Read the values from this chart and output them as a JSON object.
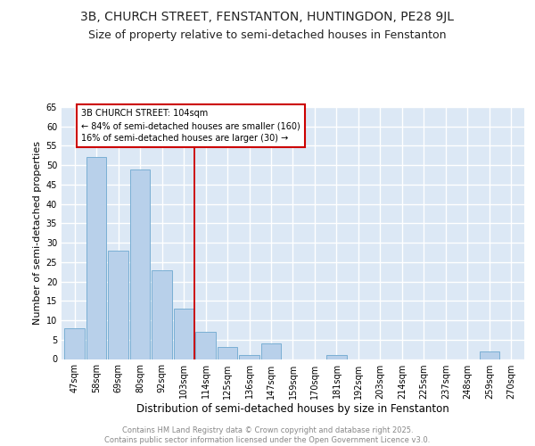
{
  "title": "3B, CHURCH STREET, FENSTANTON, HUNTINGDON, PE28 9JL",
  "subtitle": "Size of property relative to semi-detached houses in Fenstanton",
  "xlabel": "Distribution of semi-detached houses by size in Fenstanton",
  "ylabel": "Number of semi-detached properties",
  "categories": [
    "47sqm",
    "58sqm",
    "69sqm",
    "80sqm",
    "92sqm",
    "103sqm",
    "114sqm",
    "125sqm",
    "136sqm",
    "147sqm",
    "159sqm",
    "170sqm",
    "181sqm",
    "192sqm",
    "203sqm",
    "214sqm",
    "225sqm",
    "237sqm",
    "248sqm",
    "259sqm",
    "270sqm"
  ],
  "values": [
    8,
    52,
    28,
    49,
    23,
    13,
    7,
    3,
    1,
    4,
    0,
    0,
    1,
    0,
    0,
    0,
    0,
    0,
    0,
    2,
    0
  ],
  "bar_color": "#b8d0ea",
  "bar_edge_color": "#7aafd4",
  "bg_color": "#dce8f5",
  "grid_color": "#ffffff",
  "vline_color": "#cc0000",
  "annotation_box_color": "#cc0000",
  "annotation_text": "3B CHURCH STREET: 104sqm\n← 84% of semi-detached houses are smaller (160)\n16% of semi-detached houses are larger (30) →",
  "footer_text": "Contains HM Land Registry data © Crown copyright and database right 2025.\nContains public sector information licensed under the Open Government Licence v3.0.",
  "ylim": [
    0,
    65
  ],
  "yticks": [
    0,
    5,
    10,
    15,
    20,
    25,
    30,
    35,
    40,
    45,
    50,
    55,
    60,
    65
  ],
  "title_fontsize": 10,
  "subtitle_fontsize": 9,
  "ylabel_fontsize": 8,
  "xlabel_fontsize": 8.5,
  "tick_fontsize": 7,
  "annotation_fontsize": 7,
  "footer_fontsize": 6
}
